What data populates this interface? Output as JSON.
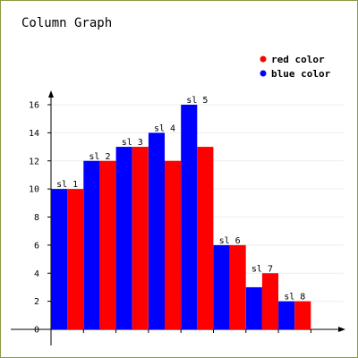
{
  "chart_data": {
    "type": "bar",
    "title": "Column Graph",
    "categories": [
      "sl 1",
      "sl 2",
      "sl 3",
      "sl 4",
      "sl 5",
      "sl 6",
      "sl 7",
      "sl 8"
    ],
    "series": [
      {
        "name": "blue color",
        "color": "#0000ff",
        "values": [
          10,
          12,
          13,
          14,
          16,
          6,
          3,
          2
        ]
      },
      {
        "name": "red color",
        "color": "#ff0000",
        "values": [
          10,
          12,
          13,
          12,
          13,
          6,
          4,
          2
        ]
      }
    ],
    "y_ticks": [
      0,
      2,
      4,
      6,
      8,
      10,
      12,
      14,
      16
    ],
    "ylim": [
      0,
      16
    ],
    "grid": true,
    "legend": {
      "position": "top-right",
      "order": [
        "red color",
        "blue color"
      ]
    },
    "frame_color": "#8a9a45"
  }
}
